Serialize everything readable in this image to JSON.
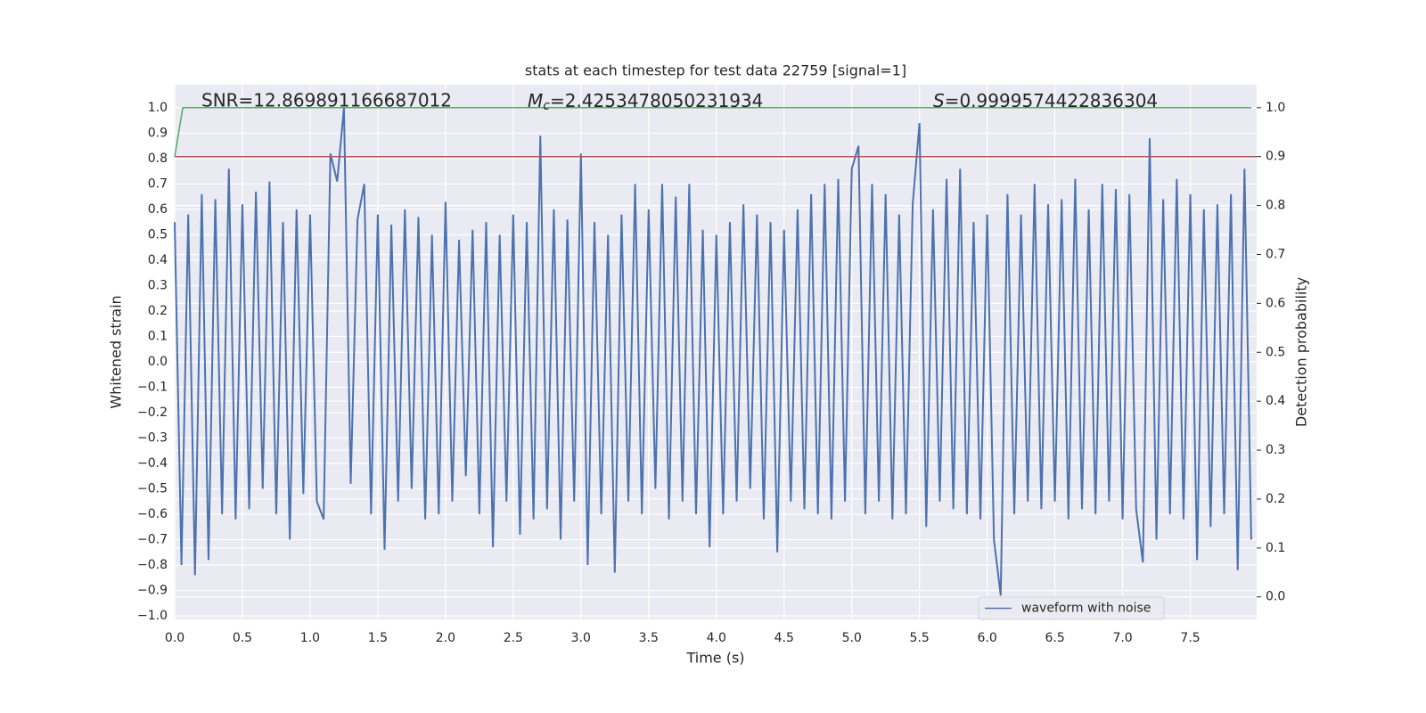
{
  "chart_data": {
    "type": "line",
    "title": "stats at each timestep for test data 22759 [signal=1]",
    "xlabel": "Time (s)",
    "ylabel": "Whitened strain",
    "y2label": "Detection probability",
    "annotations": [
      {
        "text": "SNR=12.869891166687012"
      },
      {
        "symbol": "M",
        "subscript": "c",
        "text": "=2.4253478050231934"
      },
      {
        "symbol": "S",
        "text": "=0.9999574422836304"
      }
    ],
    "xlim": [
      0,
      7.99
    ],
    "ylim": [
      -1.014,
      1.091
    ],
    "y2lim": [
      -0.046,
      1.047
    ],
    "xticks": [
      {
        "value": 0,
        "label": "0.0"
      },
      0.5,
      {
        "value": 1,
        "label": "1.0"
      },
      1.5,
      {
        "value": 2,
        "label": "2.0"
      },
      2.5,
      {
        "value": 3,
        "label": "3.0"
      },
      3.5,
      {
        "value": 4,
        "label": "4.0"
      },
      4.5,
      {
        "value": 5,
        "label": "5.0"
      },
      5.5,
      {
        "value": 6,
        "label": "6.0"
      },
      6.5,
      {
        "value": 7,
        "label": "7.0"
      },
      7.5
    ],
    "yticks": [
      {
        "value": -1,
        "label": "−1.0"
      },
      {
        "value": -0.9,
        "label": "−0.9"
      },
      {
        "value": -0.8,
        "label": "−0.8"
      },
      {
        "value": -0.7,
        "label": "−0.7"
      },
      {
        "value": -0.6,
        "label": "−0.6"
      },
      {
        "value": -0.5,
        "label": "−0.5"
      },
      {
        "value": -0.4,
        "label": "−0.4"
      },
      {
        "value": -0.3,
        "label": "−0.3"
      },
      {
        "value": -0.2,
        "label": "−0.2"
      },
      {
        "value": -0.1,
        "label": "−0.1"
      },
      {
        "value": 0,
        "label": "0.0"
      },
      0.1,
      0.2,
      0.3,
      0.4,
      0.5,
      0.6,
      0.7,
      0.8,
      0.9,
      {
        "value": 1,
        "label": "1.0"
      }
    ],
    "y2ticks": [
      {
        "value": 0,
        "label": "0.0"
      },
      0.1,
      0.2,
      0.3,
      0.4,
      0.5,
      0.6,
      0.7,
      0.8,
      0.9,
      {
        "value": 1,
        "label": "1.0"
      }
    ],
    "grid": true,
    "legend": "lower right",
    "series": [
      {
        "name": "waveform with noise",
        "color": "#4c72b0",
        "x": [
          0,
          0.05,
          0.1,
          0.15,
          0.2,
          0.25,
          0.3,
          0.35,
          0.4,
          0.45,
          0.5,
          0.55,
          0.6,
          0.65,
          0.7,
          0.75,
          0.8,
          0.85,
          0.9,
          0.95,
          1,
          1.05,
          1.1,
          1.15,
          1.2,
          1.25,
          1.3,
          1.35,
          1.4,
          1.45,
          1.5,
          1.55,
          1.6,
          1.65,
          1.7,
          1.75,
          1.8,
          1.85,
          1.9,
          1.95,
          2,
          2.05,
          2.1,
          2.15,
          2.2,
          2.25,
          2.3,
          2.35,
          2.4,
          2.45,
          2.5,
          2.55,
          2.6,
          2.65,
          2.7,
          2.75,
          2.8,
          2.85,
          2.9,
          2.95,
          3,
          3.05,
          3.1,
          3.15,
          3.2,
          3.25,
          3.3,
          3.35,
          3.4,
          3.45,
          3.5,
          3.55,
          3.6,
          3.65,
          3.7,
          3.75,
          3.8,
          3.85,
          3.9,
          3.95,
          4,
          4.05,
          4.1,
          4.15,
          4.2,
          4.25,
          4.3,
          4.35,
          4.4,
          4.45,
          4.5,
          4.55,
          4.6,
          4.65,
          4.7,
          4.75,
          4.8,
          4.85,
          4.9,
          4.95,
          5,
          5.05,
          5.1,
          5.15,
          5.2,
          5.25,
          5.3,
          5.35,
          5.4,
          5.45,
          5.5,
          5.55,
          5.6,
          5.65,
          5.7,
          5.75,
          5.8,
          5.85,
          5.9,
          5.95,
          6,
          6.05,
          6.1,
          6.15,
          6.2,
          6.25,
          6.3,
          6.35,
          6.4,
          6.45,
          6.5,
          6.55,
          6.6,
          6.65,
          6.7,
          6.75,
          6.8,
          6.85,
          6.9,
          6.95,
          7,
          7.05,
          7.1,
          7.15,
          7.2,
          7.25,
          7.3,
          7.35,
          7.4,
          7.45,
          7.5,
          7.55,
          7.6,
          7.65,
          7.7,
          7.75,
          7.8,
          7.85,
          7.9,
          7.95
        ],
        "values": [
          0.55,
          -0.8,
          0.58,
          -0.84,
          0.66,
          -0.78,
          0.64,
          -0.6,
          0.76,
          -0.62,
          0.62,
          -0.58,
          0.67,
          -0.5,
          0.71,
          -0.6,
          0.55,
          -0.7,
          0.6,
          -0.52,
          0.58,
          -0.55,
          -0.62,
          0.82,
          0.71,
          1.0,
          -0.48,
          0.56,
          0.7,
          -0.6,
          0.58,
          -0.74,
          0.54,
          -0.55,
          0.6,
          -0.5,
          0.57,
          -0.62,
          0.5,
          -0.6,
          0.63,
          -0.55,
          0.48,
          -0.45,
          0.52,
          -0.6,
          0.55,
          -0.73,
          0.5,
          -0.55,
          0.58,
          -0.68,
          0.55,
          -0.62,
          0.89,
          -0.58,
          0.6,
          -0.7,
          0.56,
          -0.55,
          0.82,
          -0.8,
          0.55,
          -0.6,
          0.5,
          -0.83,
          0.58,
          -0.55,
          0.7,
          -0.6,
          0.6,
          -0.5,
          0.7,
          -0.62,
          0.65,
          -0.55,
          0.7,
          -0.6,
          0.52,
          -0.73,
          0.5,
          -0.6,
          0.55,
          -0.55,
          0.62,
          -0.5,
          0.58,
          -0.62,
          0.55,
          -0.75,
          0.52,
          -0.55,
          0.6,
          -0.58,
          0.66,
          -0.6,
          0.7,
          -0.62,
          0.72,
          -0.55,
          0.76,
          0.85,
          -0.6,
          0.7,
          -0.55,
          0.66,
          -0.62,
          0.58,
          -0.6,
          0.62,
          0.94,
          -0.65,
          0.6,
          -0.55,
          0.72,
          -0.58,
          0.76,
          -0.6,
          0.55,
          -0.62,
          0.58,
          -0.7,
          -0.92,
          0.66,
          -0.6,
          0.58,
          -0.55,
          0.7,
          -0.58,
          0.62,
          -0.55,
          0.64,
          -0.62,
          0.72,
          -0.58,
          0.6,
          -0.6,
          0.7,
          -0.55,
          0.68,
          -0.62,
          0.66,
          -0.58,
          -0.79,
          0.88,
          -0.7,
          0.64,
          -0.6,
          0.72,
          -0.62,
          0.66,
          -0.78,
          0.6,
          -0.65,
          0.62,
          -0.6,
          0.66,
          -0.82,
          0.76,
          -0.7
        ]
      },
      {
        "color": "#55a868",
        "axis": "y2",
        "x": [
          0,
          0.06,
          7.95
        ],
        "values": [
          0.9,
          1.0,
          1.0
        ]
      },
      {
        "color": "#c44e52",
        "axis": "y2",
        "x": [
          0,
          7.99
        ],
        "values": [
          0.9,
          0.9
        ]
      }
    ]
  }
}
